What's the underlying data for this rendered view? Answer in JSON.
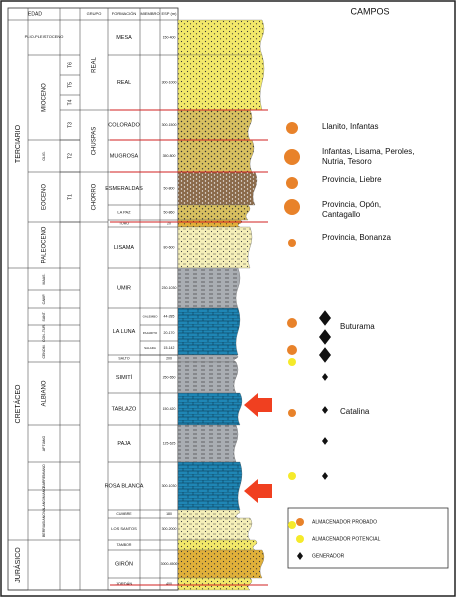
{
  "header": {
    "edad": "EDAD",
    "grupo": "GRUPO",
    "formacion": "FORMACIÓN",
    "miembro": "MIEMBRO",
    "espesor": "ESP (m)",
    "campos": "CAMPOS"
  },
  "eras": [
    "TERCIARIO",
    "CRETÁCEO",
    "JURÁSICO"
  ],
  "epochs": [
    "PLIO-PLEISTOCENO",
    "MIOCENO",
    "OLIG.",
    "EOCENO",
    "PALEOCENO",
    "MAAS.",
    "CAMP.",
    "SANT.",
    "CON.-TUR.",
    "CENOM.",
    "ALBIANO",
    "APTIANO",
    "BARREMIANO",
    "VALANGINIANO",
    "BERRIASIANO"
  ],
  "groups": [
    "T6",
    "T5",
    "T4",
    "T3",
    "T2",
    "T1",
    "REAL",
    "CHUSPAS",
    "CHORRO"
  ],
  "formations": [
    {
      "name": "MESA",
      "thickness": "150-400"
    },
    {
      "name": "REAL",
      "thickness": "300-1000"
    },
    {
      "name": "COLORADO",
      "thickness": "300-1500"
    },
    {
      "name": "MUGROSA",
      "thickness": "350-800"
    },
    {
      "name": "ESMERALDAS",
      "thickness": "50-800"
    },
    {
      "name": "LA PAZ",
      "thickness": "50-860"
    },
    {
      "name": "TORO",
      "thickness": "20"
    },
    {
      "name": "LISAMA",
      "thickness": "80-600"
    },
    {
      "name": "UMIR",
      "thickness": "230-1030"
    },
    {
      "name": "LA LUNA"
    },
    {
      "name": "SALTO",
      "thickness": "200"
    },
    {
      "name": "SIMITÍ",
      "thickness": "250-650"
    },
    {
      "name": "TABLAZO",
      "thickness": "150-420"
    },
    {
      "name": "PAJA",
      "thickness": "125-625"
    },
    {
      "name": "ROSA BLANCA",
      "thickness": "300-1030"
    },
    {
      "name": "CUMBRE",
      "thickness": "180"
    },
    {
      "name": "LOS SANTOS",
      "thickness": "300-2000"
    },
    {
      "name": "TAMBOR"
    },
    {
      "name": "GIRÓN",
      "thickness": "3000-4500"
    },
    {
      "name": "JORDÁN",
      "thickness": "400"
    }
  ],
  "members": [
    {
      "name": "GALEMBO",
      "thickness": "44-285"
    },
    {
      "name": "PAJARITO",
      "thickness": "20-170"
    },
    {
      "name": "SALADA",
      "thickness": "15-142"
    }
  ],
  "fields": [
    [
      "Llanito, Infantas"
    ],
    [
      "Infantas, Lisama, Peroles,",
      "Nutria, Tesoro"
    ],
    [
      "Provincia, Liebre"
    ],
    [
      "Provincia, Opón,",
      "Cantagallo"
    ],
    [
      "Provincia, Bonanza"
    ],
    [
      "Buturama"
    ],
    [
      "Catalina"
    ]
  ],
  "legend": [
    "ALMACENADOR PROBADO",
    "ALMACENADOR POTENCIAL",
    "GENERADOR"
  ]
}
